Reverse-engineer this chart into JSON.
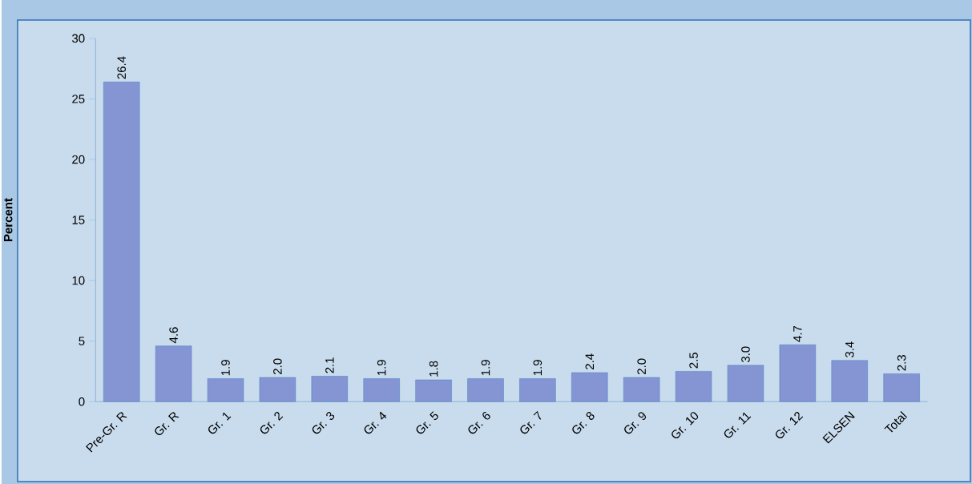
{
  "chart_data": {
    "type": "bar",
    "ylabel": "Percent",
    "categories": [
      "Pre-Gr. R",
      "Gr. R",
      "Gr. 1",
      "Gr. 2",
      "Gr. 3",
      "Gr. 4",
      "Gr. 5",
      "Gr. 6",
      "Gr. 7",
      "Gr. 8",
      "Gr. 9",
      "Gr. 10",
      "Gr. 11",
      "Gr. 12",
      "ELSEN",
      "Total"
    ],
    "values": [
      26.4,
      4.6,
      1.9,
      2.0,
      2.1,
      1.9,
      1.8,
      1.9,
      1.9,
      2.4,
      2.0,
      2.5,
      3.0,
      4.7,
      3.4,
      2.3
    ],
    "color": "#8595d4",
    "ylim": [
      0,
      30
    ],
    "yticks": [
      0,
      5,
      10,
      15,
      20,
      25,
      30
    ],
    "value_labels": [
      "26.4",
      "4.6",
      "1.9",
      "2.0",
      "2.1",
      "1.9",
      "1.8",
      "1.9",
      "1.9",
      "2.4",
      "2.0",
      "2.5",
      "3.0",
      "4.7",
      "3.4",
      "2.3"
    ]
  }
}
